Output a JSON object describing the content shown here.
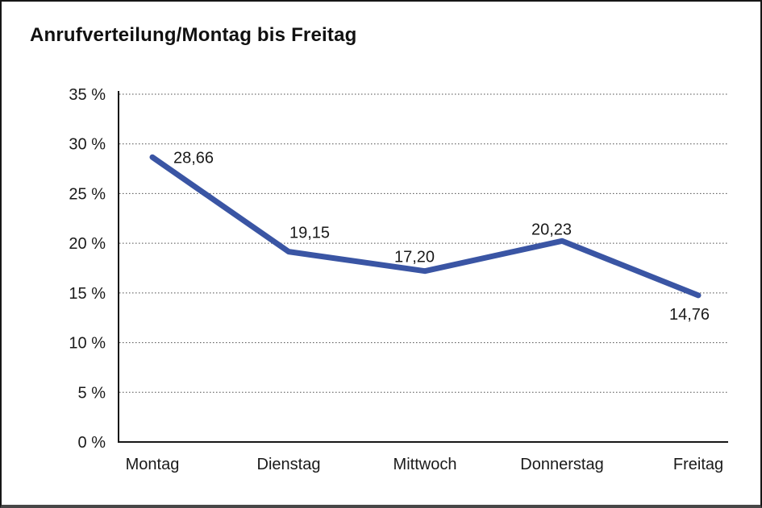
{
  "chart_data": {
    "type": "line",
    "title": "Anrufverteilung/Montag bis Freitag",
    "categories": [
      "Montag",
      "Dienstag",
      "Mittwoch",
      "Donnerstag",
      "Freitag"
    ],
    "values": [
      28.66,
      19.15,
      17.2,
      20.23,
      14.76
    ],
    "point_labels": [
      "28,66",
      "19,15",
      "17,20",
      "20,23",
      "14,76"
    ],
    "xlabel": "",
    "ylabel": "",
    "ylim": [
      0,
      35
    ],
    "y_ticks": [
      {
        "value": 0,
        "label": "0 %"
      },
      {
        "value": 5,
        "label": "5 %"
      },
      {
        "value": 10,
        "label": "10 %"
      },
      {
        "value": 15,
        "label": "15 %"
      },
      {
        "value": 20,
        "label": "20 %"
      },
      {
        "value": 25,
        "label": "25 %"
      },
      {
        "value": 30,
        "label": "30 %"
      },
      {
        "value": 35,
        "label": "35 %"
      }
    ],
    "grid": "horizontal-dotted",
    "legend": "none",
    "line_color": "#3A55A4",
    "text_color": "#1a1a1a",
    "background_color": "#ffffff"
  }
}
